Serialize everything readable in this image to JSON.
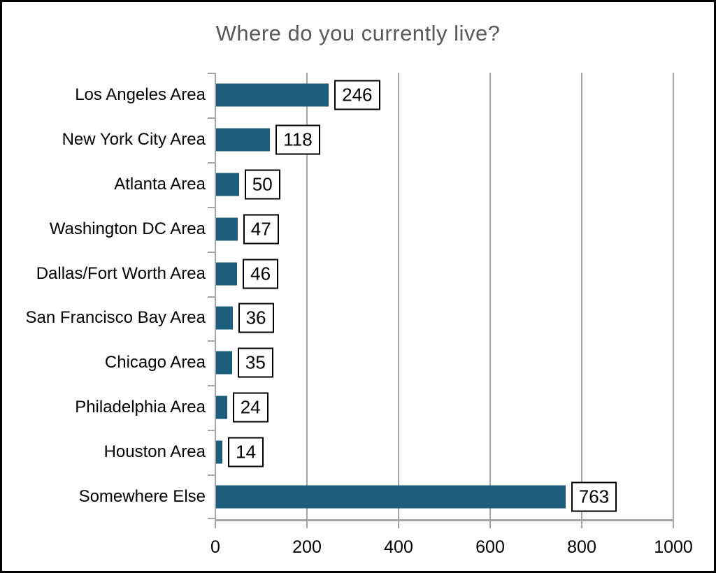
{
  "chart_data": {
    "type": "bar",
    "orientation": "horizontal",
    "title": "Where do you currently live?",
    "categories": [
      "Los Angeles Area",
      "New York City Area",
      "Atlanta Area",
      "Washington DC Area",
      "Dallas/Fort Worth Area",
      "San Francisco Bay Area",
      "Chicago Area",
      "Philadelphia Area",
      "Houston Area",
      "Somewhere Else"
    ],
    "values": [
      246,
      118,
      50,
      47,
      46,
      36,
      35,
      24,
      14,
      763
    ],
    "data_labels_shown": true,
    "xlim": [
      0,
      1000
    ],
    "x_ticks": [
      0,
      200,
      400,
      600,
      800,
      1000
    ],
    "grid": true,
    "legend": false,
    "colors": {
      "bar": "#1E5E7D",
      "axis_and_grid": "#A6A6A6",
      "title_text": "#595959",
      "label_text": "#000000",
      "value_box_border": "#000000",
      "value_box_fill": "#FFFFFF",
      "frame_border": "#000000",
      "background": "#FFFFFF"
    }
  }
}
